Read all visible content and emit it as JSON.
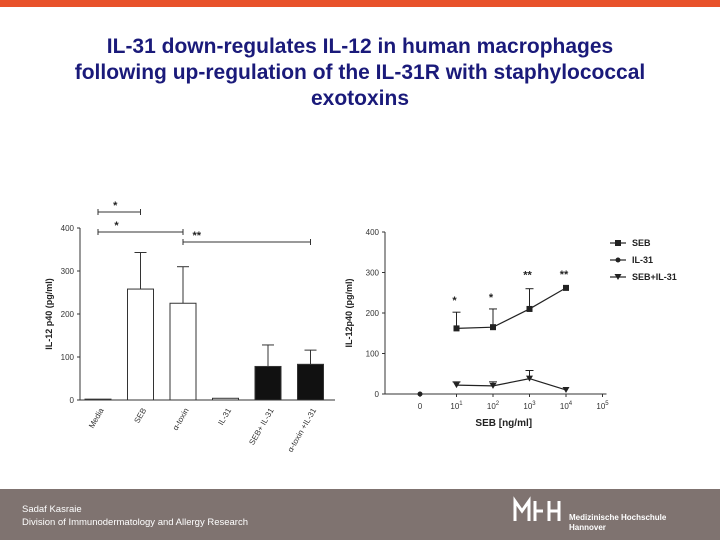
{
  "header": {
    "title_lines": [
      "IL-31 down-regulates IL-12 in human macrophages",
      "following up-regulation of the IL-31R with staphylococcal",
      "exotoxins"
    ],
    "accent_color": "#e8522a",
    "title_color": "#1a1a7a"
  },
  "chart_data": [
    {
      "type": "bar",
      "ylabel": "IL-12 p40 (pg/ml)",
      "yticks": [
        "0",
        "100",
        "200",
        "300",
        "400"
      ],
      "ylim": [
        0,
        400
      ],
      "categories": [
        "Media",
        "SEB",
        "α-toxin",
        "IL-31",
        "SEB+ IL-31",
        "α-toxin +IL-31"
      ],
      "values": [
        2,
        258,
        225,
        4,
        78,
        83
      ],
      "errors": [
        0,
        85,
        85,
        0,
        50,
        33
      ],
      "bar_fills": [
        "#ffffff",
        "#ffffff",
        "#ffffff",
        "#ffffff",
        "#111111",
        "#111111"
      ],
      "significance": [
        {
          "label": "*",
          "from": 0,
          "to": 1
        },
        {
          "label": "*",
          "from": 0,
          "to": 2
        },
        {
          "label": "**",
          "from": 2,
          "to": 5
        }
      ]
    },
    {
      "type": "line",
      "xlabel": "SEB [ng/ml]",
      "ylabel": "IL-12p40 (pg/ml)",
      "yticks": [
        "0",
        "100",
        "200",
        "300",
        "400"
      ],
      "ylim": [
        0,
        400
      ],
      "xticks": [
        {
          "base": "0",
          "exp": ""
        },
        {
          "base": "10",
          "exp": "1"
        },
        {
          "base": "10",
          "exp": "2"
        },
        {
          "base": "10",
          "exp": "3"
        },
        {
          "base": "10",
          "exp": "4"
        },
        {
          "base": "10",
          "exp": "5"
        }
      ],
      "legend_position": "top-right",
      "series": [
        {
          "name": "SEB",
          "marker": "square",
          "x_index": [
            1,
            2,
            3,
            4
          ],
          "values": [
            162,
            165,
            210,
            262
          ],
          "errors": [
            40,
            45,
            50,
            0
          ]
        },
        {
          "name": "IL-31",
          "marker": "circle",
          "x_index": [
            0
          ],
          "values": [
            0
          ],
          "errors": [
            0
          ]
        },
        {
          "name": "SEB+IL-31",
          "marker": "triangle-down",
          "x_index": [
            1,
            2,
            3,
            4
          ],
          "values": [
            22,
            20,
            38,
            10
          ],
          "errors": [
            8,
            10,
            20,
            0
          ]
        }
      ],
      "annotations": [
        {
          "label": "*",
          "x_index": 1
        },
        {
          "label": "*",
          "x_index": 2
        },
        {
          "label": "**",
          "x_index": 3
        },
        {
          "label": "**",
          "x_index": 4
        }
      ]
    }
  ],
  "footer": {
    "author": "Sadaf Kasraie",
    "department": "Division of Immunodermatology and Allergy Research",
    "institution_lines": [
      "Medizinische Hochschule",
      "Hannover"
    ],
    "background_color": "#7f7370"
  }
}
